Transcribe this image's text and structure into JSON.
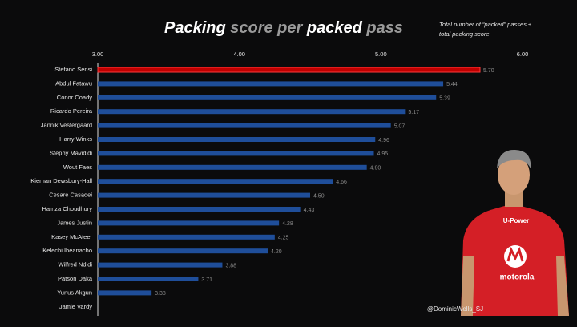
{
  "chart_data": {
    "type": "bar",
    "title_parts": [
      "Packing",
      " score per ",
      "packed",
      " pass"
    ],
    "subtitle_lines": [
      "Total number of “packed” passes ÷",
      "total packing score"
    ],
    "credit": "@DominicWells_SJ",
    "categories": [
      "Stefano Sensi",
      "Abdul Fatawu",
      "Conor Coady",
      "Ricardo Pereira",
      "Jannik Vestergaard",
      "Harry Winks",
      "Stephy Mavididi",
      "Wout Faes",
      "Kiernan Dewsbury-Hall",
      "Cesare Casadei",
      "Hamza Choudhury",
      "James Justin",
      "Kasey McAteer",
      "Kelechi Iheanacho",
      "Wilfred Ndidi",
      "Patson Daka",
      "Yunus Akgun",
      "Jamie Vardy"
    ],
    "values": [
      5.7,
      5.44,
      5.39,
      5.17,
      5.07,
      4.96,
      4.95,
      4.9,
      4.66,
      4.5,
      4.43,
      4.28,
      4.25,
      4.2,
      3.88,
      3.71,
      3.38,
      null
    ],
    "value_labels": [
      "5.70",
      "5.44",
      "5.39",
      "5.17",
      "5.07",
      "4.96",
      "4.95",
      "4.90",
      "4.66",
      "4.50",
      "4.43",
      "4.28",
      "4.25",
      "4.20",
      "3.88",
      "3.71",
      "3.38",
      null
    ],
    "colors": [
      "#c00000",
      "#1f4e9a",
      "#1f4e9a",
      "#1f4e9a",
      "#1f4e9a",
      "#1f4e9a",
      "#1f4e9a",
      "#1f4e9a",
      "#1f4e9a",
      "#1f4e9a",
      "#1f4e9a",
      "#1f4e9a",
      "#1f4e9a",
      "#1f4e9a",
      "#1f4e9a",
      "#1f4e9a",
      "#1f4e9a",
      "#1f4e9a"
    ],
    "xlim": [
      3,
      6
    ],
    "xticks": [
      {
        "value": 3,
        "label": "3.00"
      },
      {
        "value": 4,
        "label": "4.00"
      },
      {
        "value": 5,
        "label": "5.00"
      },
      {
        "value": 6,
        "label": "6.00"
      }
    ],
    "jersey_text": [
      "U-Power",
      "motorola"
    ]
  }
}
